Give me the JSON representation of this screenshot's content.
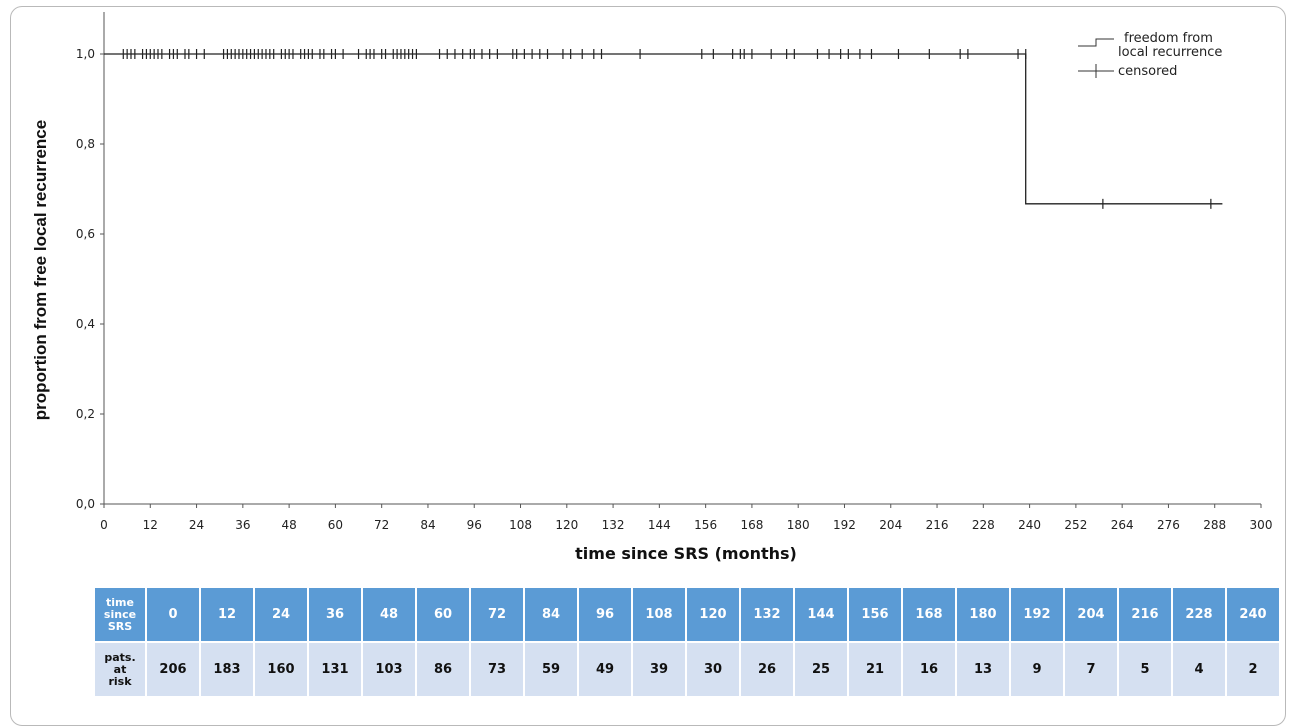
{
  "chart_data": {
    "type": "line",
    "subtype": "kaplan-meier",
    "title": "",
    "xlabel": "time since SRS (months)",
    "ylabel": "proportion from free local recurrence",
    "xlim": [
      0,
      300
    ],
    "ylim": [
      0,
      1.05
    ],
    "xticks": [
      "0",
      "12",
      "24",
      "36",
      "48",
      "60",
      "72",
      "84",
      "96",
      "108",
      "120",
      "132",
      "144",
      "156",
      "168",
      "180",
      "192",
      "204",
      "216",
      "228",
      "240",
      "252",
      "264",
      "276",
      "288",
      "300"
    ],
    "yticks": [
      {
        "value": 0.0,
        "label": "0,0"
      },
      {
        "value": 0.2,
        "label": "0,2"
      },
      {
        "value": 0.4,
        "label": "0,4"
      },
      {
        "value": 0.6,
        "label": "0,6"
      },
      {
        "value": 0.8,
        "label": "0,8"
      },
      {
        "value": 1.0,
        "label": "1,0"
      }
    ],
    "grid": false,
    "legend_position": "top-right",
    "series": [
      {
        "name": "freedom from local recurrence",
        "step_points": [
          [
            0,
            1.0
          ],
          [
            239,
            1.0
          ],
          [
            239,
            0.667
          ],
          [
            290,
            0.667
          ]
        ]
      },
      {
        "name": "censored",
        "marker": "+",
        "censor_times": [
          5,
          6,
          7,
          8,
          10,
          11,
          12,
          13,
          14,
          15,
          17,
          18,
          19,
          21,
          22,
          24,
          26,
          31,
          32,
          33,
          34,
          35,
          36,
          37,
          38,
          39,
          40,
          41,
          42,
          43,
          44,
          46,
          47,
          48,
          49,
          51,
          52,
          53,
          54,
          56,
          57,
          59,
          60,
          62,
          66,
          68,
          69,
          70,
          72,
          73,
          75,
          76,
          77,
          78,
          79,
          80,
          81,
          87,
          89,
          91,
          93,
          95,
          96,
          98,
          100,
          102,
          106,
          107,
          109,
          111,
          113,
          115,
          119,
          121,
          124,
          127,
          129,
          139,
          155,
          158,
          163,
          165,
          166,
          168,
          173,
          177,
          179,
          185,
          188,
          191,
          193,
          196,
          199,
          206,
          214,
          222,
          224,
          237,
          239,
          259,
          287
        ]
      }
    ]
  },
  "legend": {
    "line1": "freedom from",
    "line2": "local recurrence",
    "censored": "censored"
  },
  "risk_table": {
    "row1_label": [
      "time",
      "since",
      "SRS"
    ],
    "row2_label": [
      "pats.",
      "at",
      "risk"
    ],
    "times": [
      "0",
      "12",
      "24",
      "36",
      "48",
      "60",
      "72",
      "84",
      "96",
      "108",
      "120",
      "132",
      "144",
      "156",
      "168",
      "180",
      "192",
      "204",
      "216",
      "228",
      "240"
    ],
    "at_risk": [
      "206",
      "183",
      "160",
      "131",
      "103",
      "86",
      "73",
      "59",
      "49",
      "39",
      "30",
      "26",
      "25",
      "21",
      "16",
      "13",
      "9",
      "7",
      "5",
      "4",
      "2"
    ],
    "header_color": "#5b9bd5",
    "row_color": "#d5e0f1"
  }
}
